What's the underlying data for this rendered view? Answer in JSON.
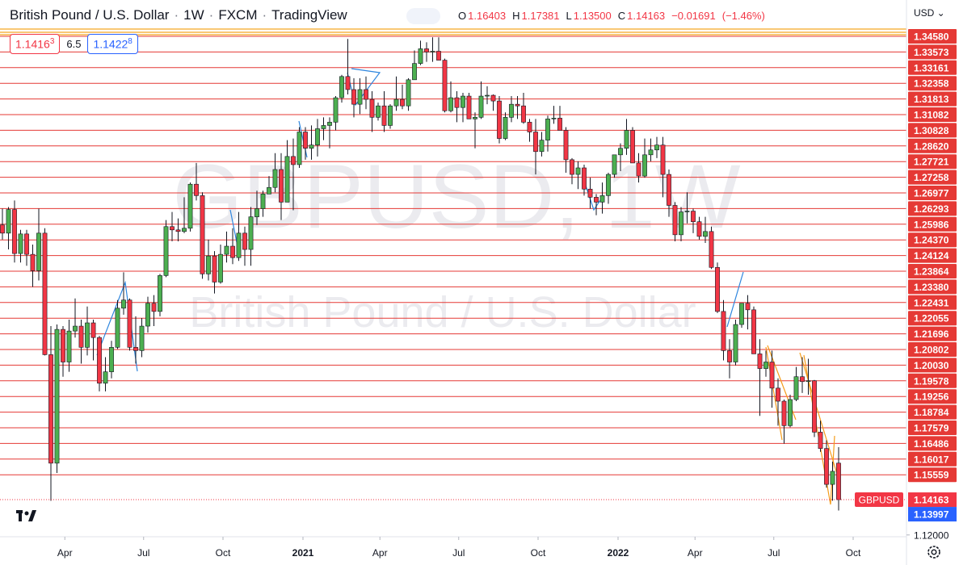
{
  "header": {
    "symbol": "British Pound / U.S. Dollar",
    "separator": "·",
    "interval": "1W",
    "broker": "FXCM",
    "source": "TradingView"
  },
  "ohlc_legend": {
    "o_label": "O",
    "open": "1.16403",
    "h_label": "H",
    "high": "1.17381",
    "l_label": "L",
    "low": "1.13500",
    "c_label": "C",
    "close": "1.14163",
    "change": "−0.01691",
    "change_pct": "(−1.46%)"
  },
  "quote": {
    "sell": "1.1416",
    "sell_pip": "3",
    "spread": "6.5",
    "buy": "1.1422",
    "buy_pip": "8"
  },
  "currency": "USD",
  "watermark": {
    "ticker": "GBPUSD, 1W",
    "description": "British Pound / U.S. Dollar"
  },
  "chart_data": {
    "type": "candlestick",
    "ohlc": [
      [
        1.31,
        1.32,
        1.301,
        1.305
      ],
      [
        1.305,
        1.321,
        1.295,
        1.3195
      ],
      [
        1.3195,
        1.325,
        1.287,
        1.2925
      ],
      [
        1.2925,
        1.307,
        1.287,
        1.3045
      ],
      [
        1.3045,
        1.307,
        1.285,
        1.292
      ],
      [
        1.292,
        1.298,
        1.272,
        1.282
      ],
      [
        1.282,
        1.32,
        1.276,
        1.305
      ],
      [
        1.305,
        1.308,
        1.23,
        1.2305
      ],
      [
        1.2305,
        1.248,
        1.1409,
        1.164
      ],
      [
        1.164,
        1.249,
        1.158,
        1.246
      ],
      [
        1.246,
        1.248,
        1.217,
        1.226
      ],
      [
        1.226,
        1.252,
        1.22,
        1.245
      ],
      [
        1.245,
        1.265,
        1.241,
        1.248
      ],
      [
        1.248,
        1.252,
        1.225,
        1.235
      ],
      [
        1.235,
        1.26,
        1.23,
        1.25
      ],
      [
        1.25,
        1.252,
        1.227,
        1.241
      ],
      [
        1.241,
        1.242,
        1.208,
        1.213
      ],
      [
        1.213,
        1.229,
        1.208,
        1.22
      ],
      [
        1.22,
        1.239,
        1.216,
        1.235
      ],
      [
        1.235,
        1.264,
        1.234,
        1.259
      ],
      [
        1.259,
        1.281,
        1.255,
        1.264
      ],
      [
        1.264,
        1.265,
        1.233,
        1.235
      ],
      [
        1.235,
        1.254,
        1.225,
        1.233
      ],
      [
        1.233,
        1.253,
        1.229,
        1.248
      ],
      [
        1.248,
        1.266,
        1.244,
        1.262
      ],
      [
        1.262,
        1.267,
        1.248,
        1.257
      ],
      [
        1.257,
        1.28,
        1.254,
        1.279
      ],
      [
        1.279,
        1.313,
        1.278,
        1.309
      ],
      [
        1.309,
        1.318,
        1.3,
        1.307
      ],
      [
        1.307,
        1.314,
        1.3,
        1.306
      ],
      [
        1.306,
        1.327,
        1.305,
        1.308
      ],
      [
        1.308,
        1.336,
        1.306,
        1.335
      ],
      [
        1.335,
        1.348,
        1.325,
        1.328
      ],
      [
        1.328,
        1.33,
        1.277,
        1.28
      ],
      [
        1.28,
        1.301,
        1.276,
        1.291
      ],
      [
        1.291,
        1.294,
        1.268,
        1.275
      ],
      [
        1.275,
        1.298,
        1.274,
        1.292
      ],
      [
        1.292,
        1.306,
        1.287,
        1.297
      ],
      [
        1.297,
        1.308,
        1.286,
        1.29
      ],
      [
        1.29,
        1.318,
        1.288,
        1.305
      ],
      [
        1.305,
        1.309,
        1.285,
        1.295
      ],
      [
        1.295,
        1.321,
        1.285,
        1.315
      ],
      [
        1.315,
        1.331,
        1.31,
        1.32
      ],
      [
        1.32,
        1.331,
        1.315,
        1.329
      ],
      [
        1.329,
        1.34,
        1.329,
        1.333
      ],
      [
        1.333,
        1.354,
        1.33,
        1.344
      ],
      [
        1.344,
        1.354,
        1.313,
        1.324
      ],
      [
        1.324,
        1.362,
        1.324,
        1.352
      ],
      [
        1.352,
        1.363,
        1.319,
        1.347
      ],
      [
        1.347,
        1.37,
        1.345,
        1.367
      ],
      [
        1.367,
        1.37,
        1.35,
        1.357
      ],
      [
        1.357,
        1.371,
        1.35,
        1.359
      ],
      [
        1.359,
        1.375,
        1.352,
        1.369
      ],
      [
        1.369,
        1.376,
        1.362,
        1.371
      ],
      [
        1.371,
        1.376,
        1.357,
        1.373
      ],
      [
        1.373,
        1.389,
        1.368,
        1.388
      ],
      [
        1.388,
        1.402,
        1.385,
        1.401
      ],
      [
        1.401,
        1.424,
        1.39,
        1.393
      ],
      [
        1.393,
        1.4,
        1.376,
        1.384
      ],
      [
        1.384,
        1.4,
        1.378,
        1.393
      ],
      [
        1.393,
        1.401,
        1.381,
        1.387
      ],
      [
        1.387,
        1.392,
        1.367,
        1.376
      ],
      [
        1.376,
        1.385,
        1.374,
        1.383
      ],
      [
        1.383,
        1.392,
        1.367,
        1.371
      ],
      [
        1.371,
        1.384,
        1.369,
        1.383
      ],
      [
        1.383,
        1.401,
        1.38,
        1.387
      ],
      [
        1.387,
        1.396,
        1.381,
        1.383
      ],
      [
        1.383,
        1.4,
        1.38,
        1.399
      ],
      [
        1.399,
        1.417,
        1.399,
        1.409
      ],
      [
        1.409,
        1.423,
        1.408,
        1.418
      ],
      [
        1.418,
        1.422,
        1.41,
        1.416
      ],
      [
        1.416,
        1.425,
        1.41,
        1.4165
      ],
      [
        1.4165,
        1.425,
        1.411,
        1.411
      ],
      [
        1.411,
        1.412,
        1.379,
        1.38
      ],
      [
        1.38,
        1.398,
        1.379,
        1.388
      ],
      [
        1.388,
        1.392,
        1.373,
        1.382
      ],
      [
        1.382,
        1.391,
        1.373,
        1.389
      ],
      [
        1.389,
        1.391,
        1.375,
        1.375
      ],
      [
        1.375,
        1.379,
        1.357,
        1.376
      ],
      [
        1.376,
        1.398,
        1.375,
        1.389
      ],
      [
        1.389,
        1.395,
        1.384,
        1.3895
      ],
      [
        1.3895,
        1.39,
        1.38,
        1.386
      ],
      [
        1.386,
        1.389,
        1.36,
        1.363
      ],
      [
        1.363,
        1.379,
        1.362,
        1.376
      ],
      [
        1.376,
        1.389,
        1.373,
        1.384
      ],
      [
        1.384,
        1.389,
        1.375,
        1.383
      ],
      [
        1.383,
        1.391,
        1.372,
        1.373
      ],
      [
        1.373,
        1.375,
        1.361,
        1.367
      ],
      [
        1.367,
        1.375,
        1.341,
        1.355
      ],
      [
        1.355,
        1.367,
        1.352,
        1.362
      ],
      [
        1.362,
        1.377,
        1.355,
        1.375
      ],
      [
        1.375,
        1.383,
        1.372,
        1.3755
      ],
      [
        1.3755,
        1.383,
        1.368,
        1.368
      ],
      [
        1.368,
        1.37,
        1.342,
        1.35
      ],
      [
        1.35,
        1.351,
        1.335,
        1.341
      ],
      [
        1.341,
        1.349,
        1.332,
        1.345
      ],
      [
        1.345,
        1.347,
        1.328,
        1.332
      ],
      [
        1.332,
        1.339,
        1.32,
        1.327
      ],
      [
        1.327,
        1.329,
        1.316,
        1.324
      ],
      [
        1.324,
        1.336,
        1.317,
        1.328
      ],
      [
        1.328,
        1.342,
        1.323,
        1.341
      ],
      [
        1.341,
        1.353,
        1.339,
        1.353
      ],
      [
        1.353,
        1.36,
        1.343,
        1.357
      ],
      [
        1.357,
        1.375,
        1.353,
        1.368
      ],
      [
        1.368,
        1.37,
        1.348,
        1.348
      ],
      [
        1.348,
        1.354,
        1.336,
        1.34
      ],
      [
        1.34,
        1.363,
        1.339,
        1.353
      ],
      [
        1.353,
        1.363,
        1.349,
        1.356
      ],
      [
        1.356,
        1.364,
        1.351,
        1.359
      ],
      [
        1.359,
        1.364,
        1.327,
        1.341
      ],
      [
        1.341,
        1.344,
        1.315,
        1.322
      ],
      [
        1.322,
        1.324,
        1.3,
        1.304
      ],
      [
        1.304,
        1.321,
        1.3,
        1.318
      ],
      [
        1.318,
        1.33,
        1.311,
        1.3185
      ],
      [
        1.3185,
        1.32,
        1.305,
        1.312
      ],
      [
        1.312,
        1.315,
        1.301,
        1.303
      ],
      [
        1.303,
        1.315,
        1.299,
        1.306
      ],
      [
        1.306,
        1.309,
        1.283,
        1.284
      ],
      [
        1.284,
        1.287,
        1.256,
        1.257
      ],
      [
        1.257,
        1.264,
        1.227,
        1.233
      ],
      [
        1.233,
        1.24,
        1.216,
        1.226
      ],
      [
        1.226,
        1.252,
        1.224,
        1.249
      ],
      [
        1.249,
        1.262,
        1.247,
        1.262
      ],
      [
        1.262,
        1.267,
        1.246,
        1.258
      ],
      [
        1.258,
        1.26,
        1.231,
        1.231
      ],
      [
        1.231,
        1.24,
        1.193,
        1.222
      ],
      [
        1.222,
        1.233,
        1.217,
        1.226
      ],
      [
        1.226,
        1.233,
        1.198,
        1.21
      ],
      [
        1.21,
        1.216,
        1.187,
        1.202
      ],
      [
        1.202,
        1.203,
        1.176,
        1.187
      ],
      [
        1.187,
        1.206,
        1.186,
        1.203
      ],
      [
        1.203,
        1.223,
        1.202,
        1.217
      ],
      [
        1.217,
        1.229,
        1.207,
        1.214
      ],
      [
        1.214,
        1.228,
        1.206,
        1.2145
      ],
      [
        1.2145,
        1.215,
        1.18,
        1.183
      ],
      [
        1.183,
        1.19,
        1.171,
        1.173
      ],
      [
        1.173,
        1.178,
        1.149,
        1.151
      ],
      [
        1.151,
        1.165,
        1.141,
        1.159
      ],
      [
        1.16403,
        1.17381,
        1.135,
        1.14163
      ]
    ],
    "xlim": [
      -0.4,
      149.2
    ],
    "xticks": [
      {
        "value": 10.3,
        "label": "Apr"
      },
      {
        "value": 23.3,
        "label": "Jul"
      },
      {
        "value": 36.4,
        "label": "Oct"
      },
      {
        "value": 49.6,
        "label": "2021"
      },
      {
        "value": 62.3,
        "label": "Apr"
      },
      {
        "value": 75.3,
        "label": "Jul"
      },
      {
        "value": 88.4,
        "label": "Oct"
      },
      {
        "value": 101.6,
        "label": "2022"
      },
      {
        "value": 114.3,
        "label": "Apr"
      },
      {
        "value": 127.3,
        "label": "Jul"
      },
      {
        "value": 140.4,
        "label": "Oct"
      }
    ],
    "ylim": [
      1.1189,
      1.4479
    ],
    "yticks": [
      {
        "value": 1.12,
        "label": "1.12000"
      }
    ],
    "up_color": "#4caf50",
    "down_color": "#f23645",
    "price_levels": [
      "1.34580",
      "1.33573",
      "1.33161",
      "1.32358",
      "1.31813",
      "1.31082",
      "1.30828",
      "1.28620",
      "1.27721",
      "1.27258",
      "1.26977",
      "1.26293",
      "1.25986",
      "1.24370",
      "1.24124",
      "1.23864",
      "1.23380",
      "1.22431",
      "1.22055",
      "1.21696",
      "1.20802",
      "1.20030",
      "1.19578",
      "1.19256",
      "1.18784",
      "1.17579",
      "1.16486",
      "1.16017",
      "1.15559"
    ],
    "level_color": "#e53935",
    "last_price": {
      "value": 1.14163,
      "label": "1.14163",
      "symbol": "GBPUSD"
    },
    "ask_price": {
      "value": 1.13997,
      "label": "1.13997"
    }
  }
}
